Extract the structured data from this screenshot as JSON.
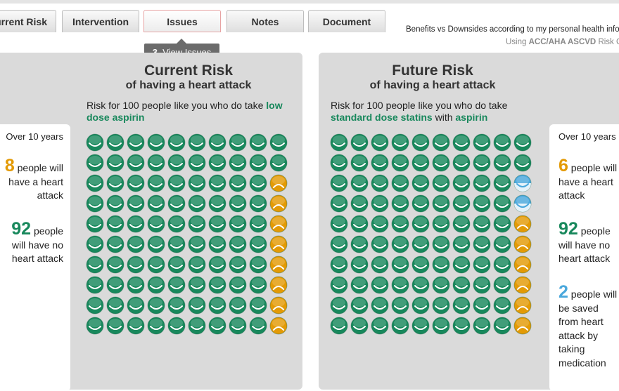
{
  "tabs": [
    "Current Risk",
    "Intervention",
    "Issues",
    "Notes",
    "Document"
  ],
  "active_tab": 2,
  "header": {
    "subtitle": "Benefits vs Downsides according to my personal health infor",
    "source_prefix": "Using",
    "source_bold": "ACC/AHA ASCVD",
    "source_suffix": "Risk Calc"
  },
  "tooltip": {
    "step": "3.",
    "label": "View Issues"
  },
  "panels": [
    {
      "title": "Current Risk",
      "subtitle": "of having a heart attack",
      "description": [
        {
          "text": "Risk for 100 people like you who do take ",
          "highlight": false
        },
        {
          "text": "low dose aspirin",
          "highlight": true
        }
      ],
      "timeframe": "Over 10 years",
      "align": "right",
      "outcomes": [
        {
          "count": 8,
          "text": "people will have a heart attack",
          "icon": "sad",
          "color": "#e39a05"
        },
        {
          "count": 92,
          "text": "people will have no heart attack",
          "icon": "happy",
          "color": "#18885c"
        }
      ]
    },
    {
      "title": "Future Risk",
      "subtitle": "of having a heart attack",
      "description": [
        {
          "text": "Risk for 100 people like you who do take ",
          "highlight": false
        },
        {
          "text": "standard dose statins",
          "highlight": true
        },
        {
          "text": " with ",
          "highlight": false
        },
        {
          "text": "aspirin",
          "highlight": true
        }
      ],
      "timeframe": "Over 10 years",
      "align": "left",
      "outcomes": [
        {
          "count": 6,
          "text": "people will have a heart attack",
          "icon": "sad",
          "color": "#e39a05"
        },
        {
          "count": 92,
          "text": "people will have no heart attack",
          "icon": "happy",
          "color": "#18885c"
        },
        {
          "count": 2,
          "text": "people will be saved from heart attack by taking medication",
          "icon": "saved",
          "color": "#4aa8dc"
        }
      ]
    }
  ]
}
